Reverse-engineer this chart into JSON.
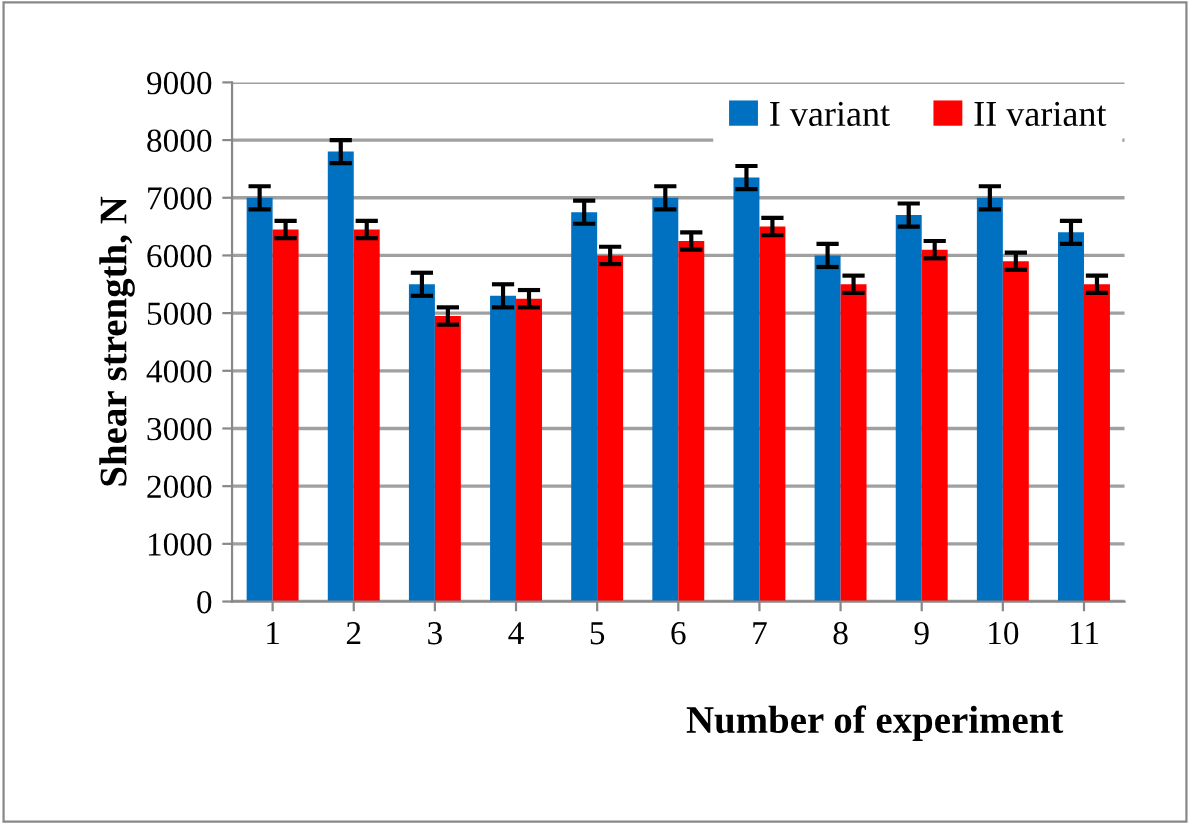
{
  "chart_data": {
    "type": "bar",
    "xlabel": "Number of experiment",
    "ylabel": "Shear strength, N",
    "categories": [
      "1",
      "2",
      "3",
      "4",
      "5",
      "6",
      "7",
      "8",
      "9",
      "10",
      "11"
    ],
    "series": [
      {
        "name": "I variant",
        "color": "#0070c0",
        "values": [
          7000,
          7800,
          5500,
          5300,
          6750,
          7000,
          7350,
          6000,
          6700,
          7000,
          6400
        ],
        "errors": [
          200,
          200,
          200,
          200,
          200,
          200,
          200,
          200,
          200,
          200,
          200
        ]
      },
      {
        "name": "II variant",
        "color": "#ff0000",
        "values": [
          6450,
          6450,
          4950,
          5250,
          6000,
          6250,
          6500,
          5500,
          6100,
          5900,
          5500
        ],
        "errors": [
          150,
          150,
          150,
          150,
          150,
          150,
          150,
          150,
          150,
          150,
          150
        ]
      }
    ],
    "ylim": [
      0,
      9000
    ],
    "yticks": [
      0,
      1000,
      2000,
      3000,
      4000,
      5000,
      6000,
      7000,
      8000,
      9000
    ],
    "grid": "y",
    "legend": "top right"
  }
}
